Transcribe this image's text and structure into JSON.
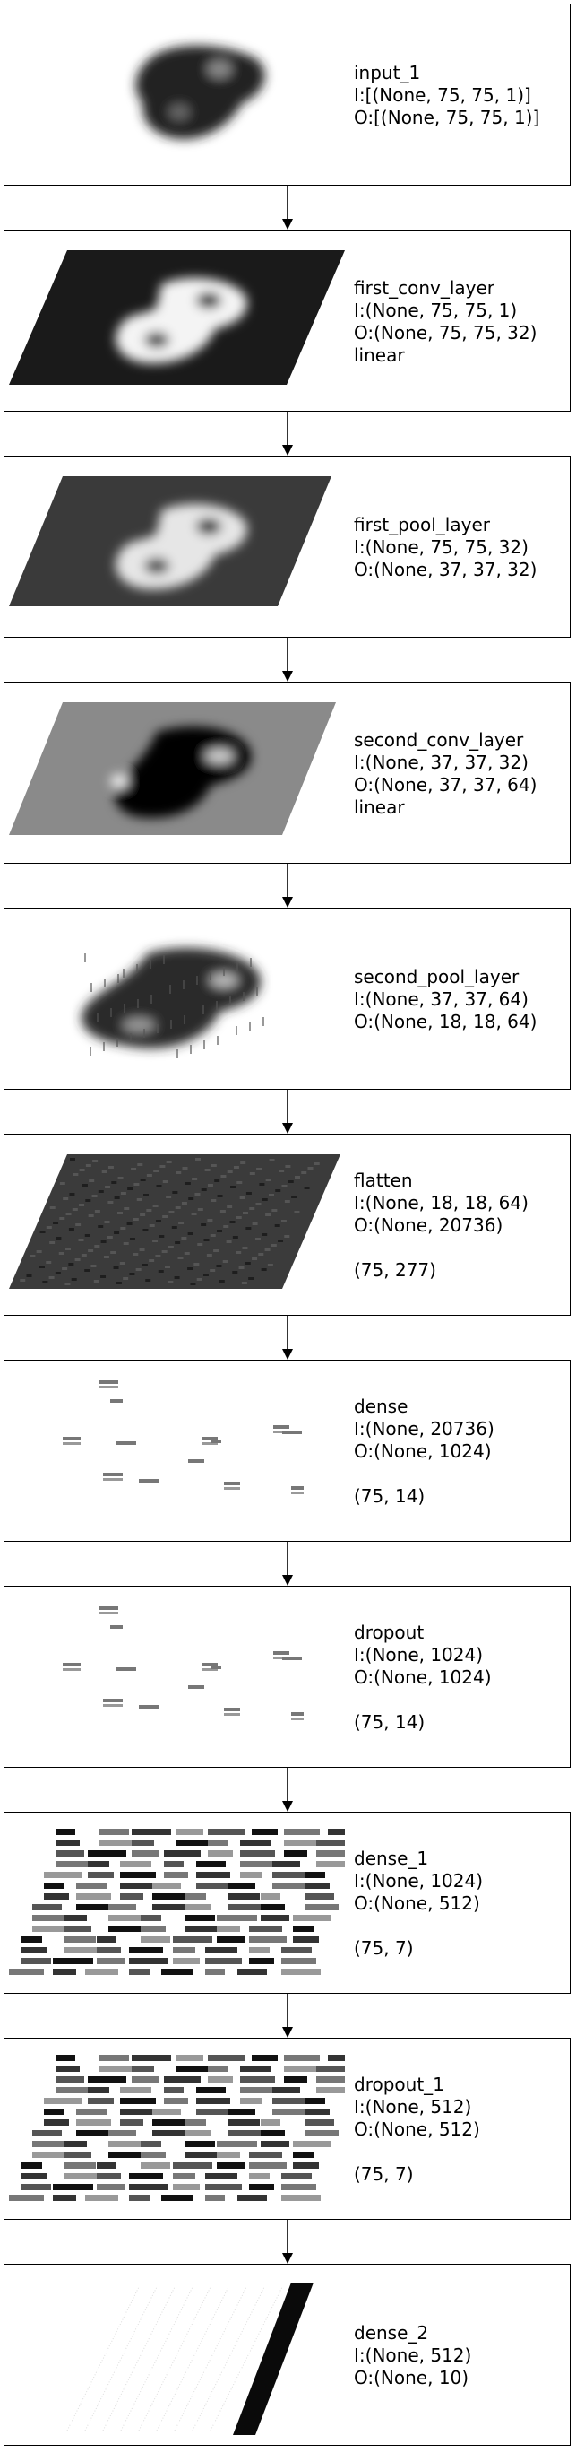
{
  "layers": [
    {
      "name": "input_1",
      "input": "I:[(None, 75, 75, 1)]",
      "output": "O:[(None, 75, 75, 1)]",
      "activation": "",
      "shape": "",
      "viz": "image"
    },
    {
      "name": "first_conv_layer",
      "input": "I:(None, 75, 75, 1)",
      "output": "O:(None, 75, 75, 32)",
      "activation": "linear",
      "shape": "",
      "viz": "conv-bright"
    },
    {
      "name": "first_pool_layer",
      "input": "I:(None, 75, 75, 32)",
      "output": "O:(None, 37, 37, 32)",
      "activation": "",
      "shape": "",
      "viz": "pool-bright"
    },
    {
      "name": "second_conv_layer",
      "input": "I:(None, 37, 37, 32)",
      "output": "O:(None, 37, 37, 64)",
      "activation": "linear",
      "shape": "",
      "viz": "conv-dark"
    },
    {
      "name": "second_pool_layer",
      "input": "I:(None, 37, 37, 64)",
      "output": "O:(None, 18, 18, 64)",
      "activation": "",
      "shape": "",
      "viz": "pool-dark"
    },
    {
      "name": "flatten",
      "input": "I:(None, 18, 18, 64)",
      "output": "O:(None, 20736)",
      "activation": "",
      "shape": "(75, 277)",
      "viz": "flatten"
    },
    {
      "name": "dense",
      "input": "I:(None, 20736)",
      "output": "O:(None, 1024)",
      "activation": "",
      "shape": "(75, 14)",
      "viz": "sparse"
    },
    {
      "name": "dropout",
      "input": "I:(None, 1024)",
      "output": "O:(None, 1024)",
      "activation": "",
      "shape": "(75, 14)",
      "viz": "sparse"
    },
    {
      "name": "dense_1",
      "input": "I:(None, 1024)",
      "output": "O:(None, 512)",
      "activation": "",
      "shape": "(75, 7)",
      "viz": "bands"
    },
    {
      "name": "dropout_1",
      "input": "I:(None, 512)",
      "output": "O:(None, 512)",
      "activation": "",
      "shape": "(75, 7)",
      "viz": "bands"
    },
    {
      "name": "dense_2",
      "input": "I:(None, 512)",
      "output": "O:(None, 10)",
      "activation": "",
      "shape": "",
      "viz": "output-bar"
    }
  ],
  "colors": {
    "border": "#000000",
    "text": "#000000",
    "background": "#ffffff"
  }
}
